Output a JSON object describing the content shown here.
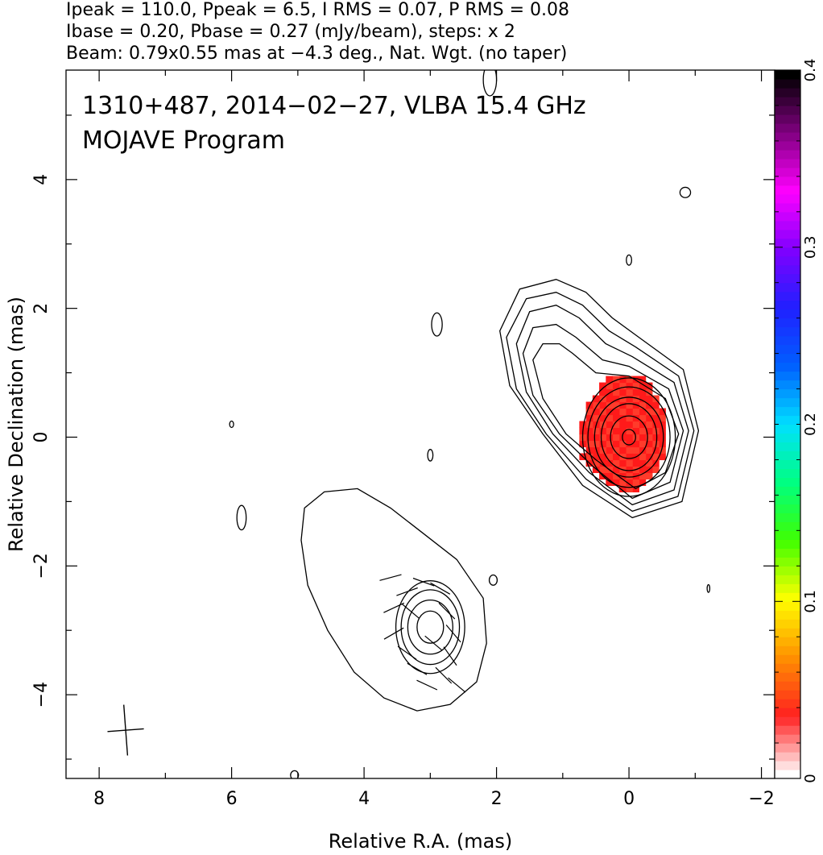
{
  "header": {
    "line1": "Ipeak = 110.0, Ppeak = 6.5, I RMS = 0.07, P RMS = 0.08",
    "line2": "Ibase = 0.20, Pbase = 0.27 (mJy/beam), steps: x 2",
    "line3": "Beam: 0.79x0.55 mas at −4.3 deg., Nat. Wgt. (no taper)"
  },
  "plot_title": {
    "line1": "1310+487, 2014−02−27, VLBA 15.4 GHz",
    "line2": "MOJAVE Program"
  },
  "chart_data": {
    "type": "heatmap",
    "xlabel": "Relative R.A. (mas)",
    "ylabel": "Relative Declination (mas)",
    "xlim": [
      8.5,
      -2.2
    ],
    "ylim": [
      -5.3,
      5.7
    ],
    "x_ticks": [
      8,
      6,
      4,
      2,
      0,
      -2
    ],
    "x_tick_labels": [
      "8",
      "6",
      "4",
      "2",
      "0",
      "−2"
    ],
    "y_ticks": [
      -4,
      -2,
      0,
      2,
      4
    ],
    "y_tick_labels": [
      "−4",
      "−2",
      "0",
      "2",
      "4"
    ],
    "colorbar": {
      "min": 0,
      "max": 0.4,
      "ticks": [
        0,
        0.1,
        0.2,
        0.3,
        0.4
      ],
      "tick_labels": [
        "0",
        "0.1",
        "0.2",
        "0.3",
        "0.4"
      ],
      "colors": [
        "#ffffff",
        "#ff2020",
        "#ff9000",
        "#ffff00",
        "#40ff00",
        "#00ff80",
        "#00e0ff",
        "#0060ff",
        "#2020ff",
        "#8000ff",
        "#ff00ff",
        "#800080",
        "#000000"
      ]
    },
    "polarization_patch": {
      "color": "#ff1a1a",
      "center": [
        0.0,
        0.0
      ],
      "extent_x": [
        -0.55,
        0.75
      ],
      "extent_y": [
        -0.85,
        1.0
      ],
      "value": 0.06
    },
    "contour_groups": [
      {
        "name": "core",
        "center": [
          0.0,
          0.0
        ],
        "levels": [
          {
            "rx": 0.1,
            "ry": 0.12,
            "angle": 0
          },
          {
            "rx": 0.28,
            "ry": 0.33,
            "angle": 0
          },
          {
            "rx": 0.42,
            "ry": 0.52,
            "angle": 0
          },
          {
            "rx": 0.52,
            "ry": 0.62,
            "angle": 0
          },
          {
            "rx": 0.62,
            "ry": 0.78,
            "angle": 0
          },
          {
            "rx": 0.7,
            "ry": 0.92,
            "angle": 0
          }
        ]
      },
      {
        "name": "knot",
        "center": [
          3.0,
          -2.95
        ],
        "levels": [
          {
            "rx": 0.2,
            "ry": 0.25,
            "angle": 0
          },
          {
            "rx": 0.34,
            "ry": 0.42,
            "angle": 0
          },
          {
            "rx": 0.44,
            "ry": 0.58,
            "angle": 0
          },
          {
            "rx": 0.52,
            "ry": 0.72,
            "angle": 0
          }
        ]
      }
    ],
    "contour_polylines": [
      [
        [
          0.5,
          1.0
        ],
        [
          0.85,
          1.3
        ],
        [
          1.05,
          1.45
        ],
        [
          1.3,
          1.45
        ],
        [
          1.45,
          1.2
        ],
        [
          1.3,
          0.6
        ],
        [
          0.95,
          0.05
        ],
        [
          0.5,
          -0.35
        ],
        [
          -0.1,
          -0.8
        ],
        [
          -0.55,
          -0.55
        ],
        [
          -0.75,
          0.05
        ],
        [
          -0.55,
          0.6
        ],
        [
          0.0,
          0.95
        ],
        [
          0.5,
          1.0
        ]
      ],
      [
        [
          0.4,
          1.2
        ],
        [
          0.8,
          1.55
        ],
        [
          1.1,
          1.75
        ],
        [
          1.45,
          1.7
        ],
        [
          1.6,
          1.3
        ],
        [
          1.45,
          0.65
        ],
        [
          1.05,
          0.05
        ],
        [
          0.55,
          -0.45
        ],
        [
          -0.05,
          -0.95
        ],
        [
          -0.62,
          -0.7
        ],
        [
          -0.82,
          0.1
        ],
        [
          -0.6,
          0.75
        ],
        [
          0.0,
          1.1
        ],
        [
          0.4,
          1.2
        ]
      ],
      [
        [
          0.35,
          1.45
        ],
        [
          0.75,
          1.85
        ],
        [
          1.1,
          2.05
        ],
        [
          1.5,
          1.95
        ],
        [
          1.7,
          1.45
        ],
        [
          1.55,
          0.7
        ],
        [
          1.15,
          0.05
        ],
        [
          0.6,
          -0.55
        ],
        [
          -0.05,
          -1.05
        ],
        [
          -0.68,
          -0.82
        ],
        [
          -0.9,
          0.1
        ],
        [
          -0.68,
          0.85
        ],
        [
          -0.05,
          1.25
        ],
        [
          0.35,
          1.45
        ]
      ],
      [
        [
          0.3,
          1.65
        ],
        [
          0.7,
          2.05
        ],
        [
          1.1,
          2.25
        ],
        [
          1.55,
          2.15
        ],
        [
          1.85,
          1.55
        ],
        [
          1.7,
          0.75
        ],
        [
          1.25,
          0.05
        ],
        [
          0.65,
          -0.65
        ],
        [
          -0.05,
          -1.15
        ],
        [
          -0.74,
          -0.92
        ],
        [
          -0.98,
          0.1
        ],
        [
          -0.75,
          0.95
        ],
        [
          -0.1,
          1.4
        ],
        [
          0.3,
          1.65
        ]
      ],
      [
        [
          0.25,
          1.85
        ],
        [
          0.65,
          2.25
        ],
        [
          1.1,
          2.45
        ],
        [
          1.65,
          2.3
        ],
        [
          1.95,
          1.65
        ],
        [
          1.8,
          0.8
        ],
        [
          1.3,
          0.05
        ],
        [
          0.7,
          -0.75
        ],
        [
          -0.05,
          -1.25
        ],
        [
          -0.8,
          -1.0
        ],
        [
          -1.05,
          0.1
        ],
        [
          -0.82,
          1.05
        ],
        [
          -0.15,
          1.55
        ],
        [
          0.25,
          1.85
        ]
      ],
      [
        [
          4.9,
          -1.1
        ],
        [
          4.6,
          -0.85
        ],
        [
          4.1,
          -0.8
        ],
        [
          3.6,
          -1.1
        ],
        [
          3.1,
          -1.5
        ],
        [
          2.6,
          -1.9
        ],
        [
          2.2,
          -2.5
        ],
        [
          2.15,
          -3.2
        ],
        [
          2.3,
          -3.8
        ],
        [
          2.7,
          -4.15
        ],
        [
          3.2,
          -4.25
        ],
        [
          3.7,
          -4.05
        ],
        [
          4.15,
          -3.65
        ],
        [
          4.55,
          -3.0
        ],
        [
          4.85,
          -2.3
        ],
        [
          4.95,
          -1.6
        ],
        [
          4.9,
          -1.1
        ]
      ]
    ],
    "noise_blobs": [
      {
        "x": 2.1,
        "y": 5.55,
        "rx": 0.1,
        "ry": 0.25
      },
      {
        "x": -0.85,
        "y": 3.8,
        "rx": 0.08,
        "ry": 0.08
      },
      {
        "x": 0.0,
        "y": 2.75,
        "rx": 0.04,
        "ry": 0.08
      },
      {
        "x": 2.9,
        "y": 1.75,
        "rx": 0.08,
        "ry": 0.18
      },
      {
        "x": 6.0,
        "y": 0.2,
        "rx": 0.03,
        "ry": 0.05
      },
      {
        "x": 3.0,
        "y": -0.28,
        "rx": 0.04,
        "ry": 0.09
      },
      {
        "x": 5.85,
        "y": -1.25,
        "rx": 0.07,
        "ry": 0.19
      },
      {
        "x": 2.05,
        "y": -2.22,
        "rx": 0.06,
        "ry": 0.08
      },
      {
        "x": -1.2,
        "y": -2.35,
        "rx": 0.02,
        "ry": 0.06
      },
      {
        "x": 5.05,
        "y": -5.25,
        "rx": 0.06,
        "ry": 0.07
      }
    ],
    "evpa_ticks": [
      {
        "x": 3.6,
        "y": -2.18,
        "angle": 15
      },
      {
        "x": 3.35,
        "y": -2.4,
        "angle": 20
      },
      {
        "x": 3.1,
        "y": -2.25,
        "angle": -20
      },
      {
        "x": 2.85,
        "y": -2.35,
        "angle": -30
      },
      {
        "x": 3.55,
        "y": -2.65,
        "angle": 25
      },
      {
        "x": 3.3,
        "y": -2.7,
        "angle": -40
      },
      {
        "x": 2.75,
        "y": -2.7,
        "angle": -45
      },
      {
        "x": 3.55,
        "y": -3.05,
        "angle": 30
      },
      {
        "x": 2.65,
        "y": -3.05,
        "angle": -50
      },
      {
        "x": 3.35,
        "y": -3.35,
        "angle": -35
      },
      {
        "x": 2.95,
        "y": -3.2,
        "angle": -40
      },
      {
        "x": 2.7,
        "y": -3.4,
        "angle": -55
      },
      {
        "x": 3.2,
        "y": -3.6,
        "angle": -30
      },
      {
        "x": 2.8,
        "y": -3.7,
        "angle": -45
      },
      {
        "x": 2.6,
        "y": -3.85,
        "angle": -40
      },
      {
        "x": 3.05,
        "y": -3.85,
        "angle": -25
      }
    ],
    "beam": {
      "x": 7.6,
      "y": -4.55,
      "major": 0.79,
      "minor": 0.55,
      "pa_deg": -4.3
    }
  }
}
